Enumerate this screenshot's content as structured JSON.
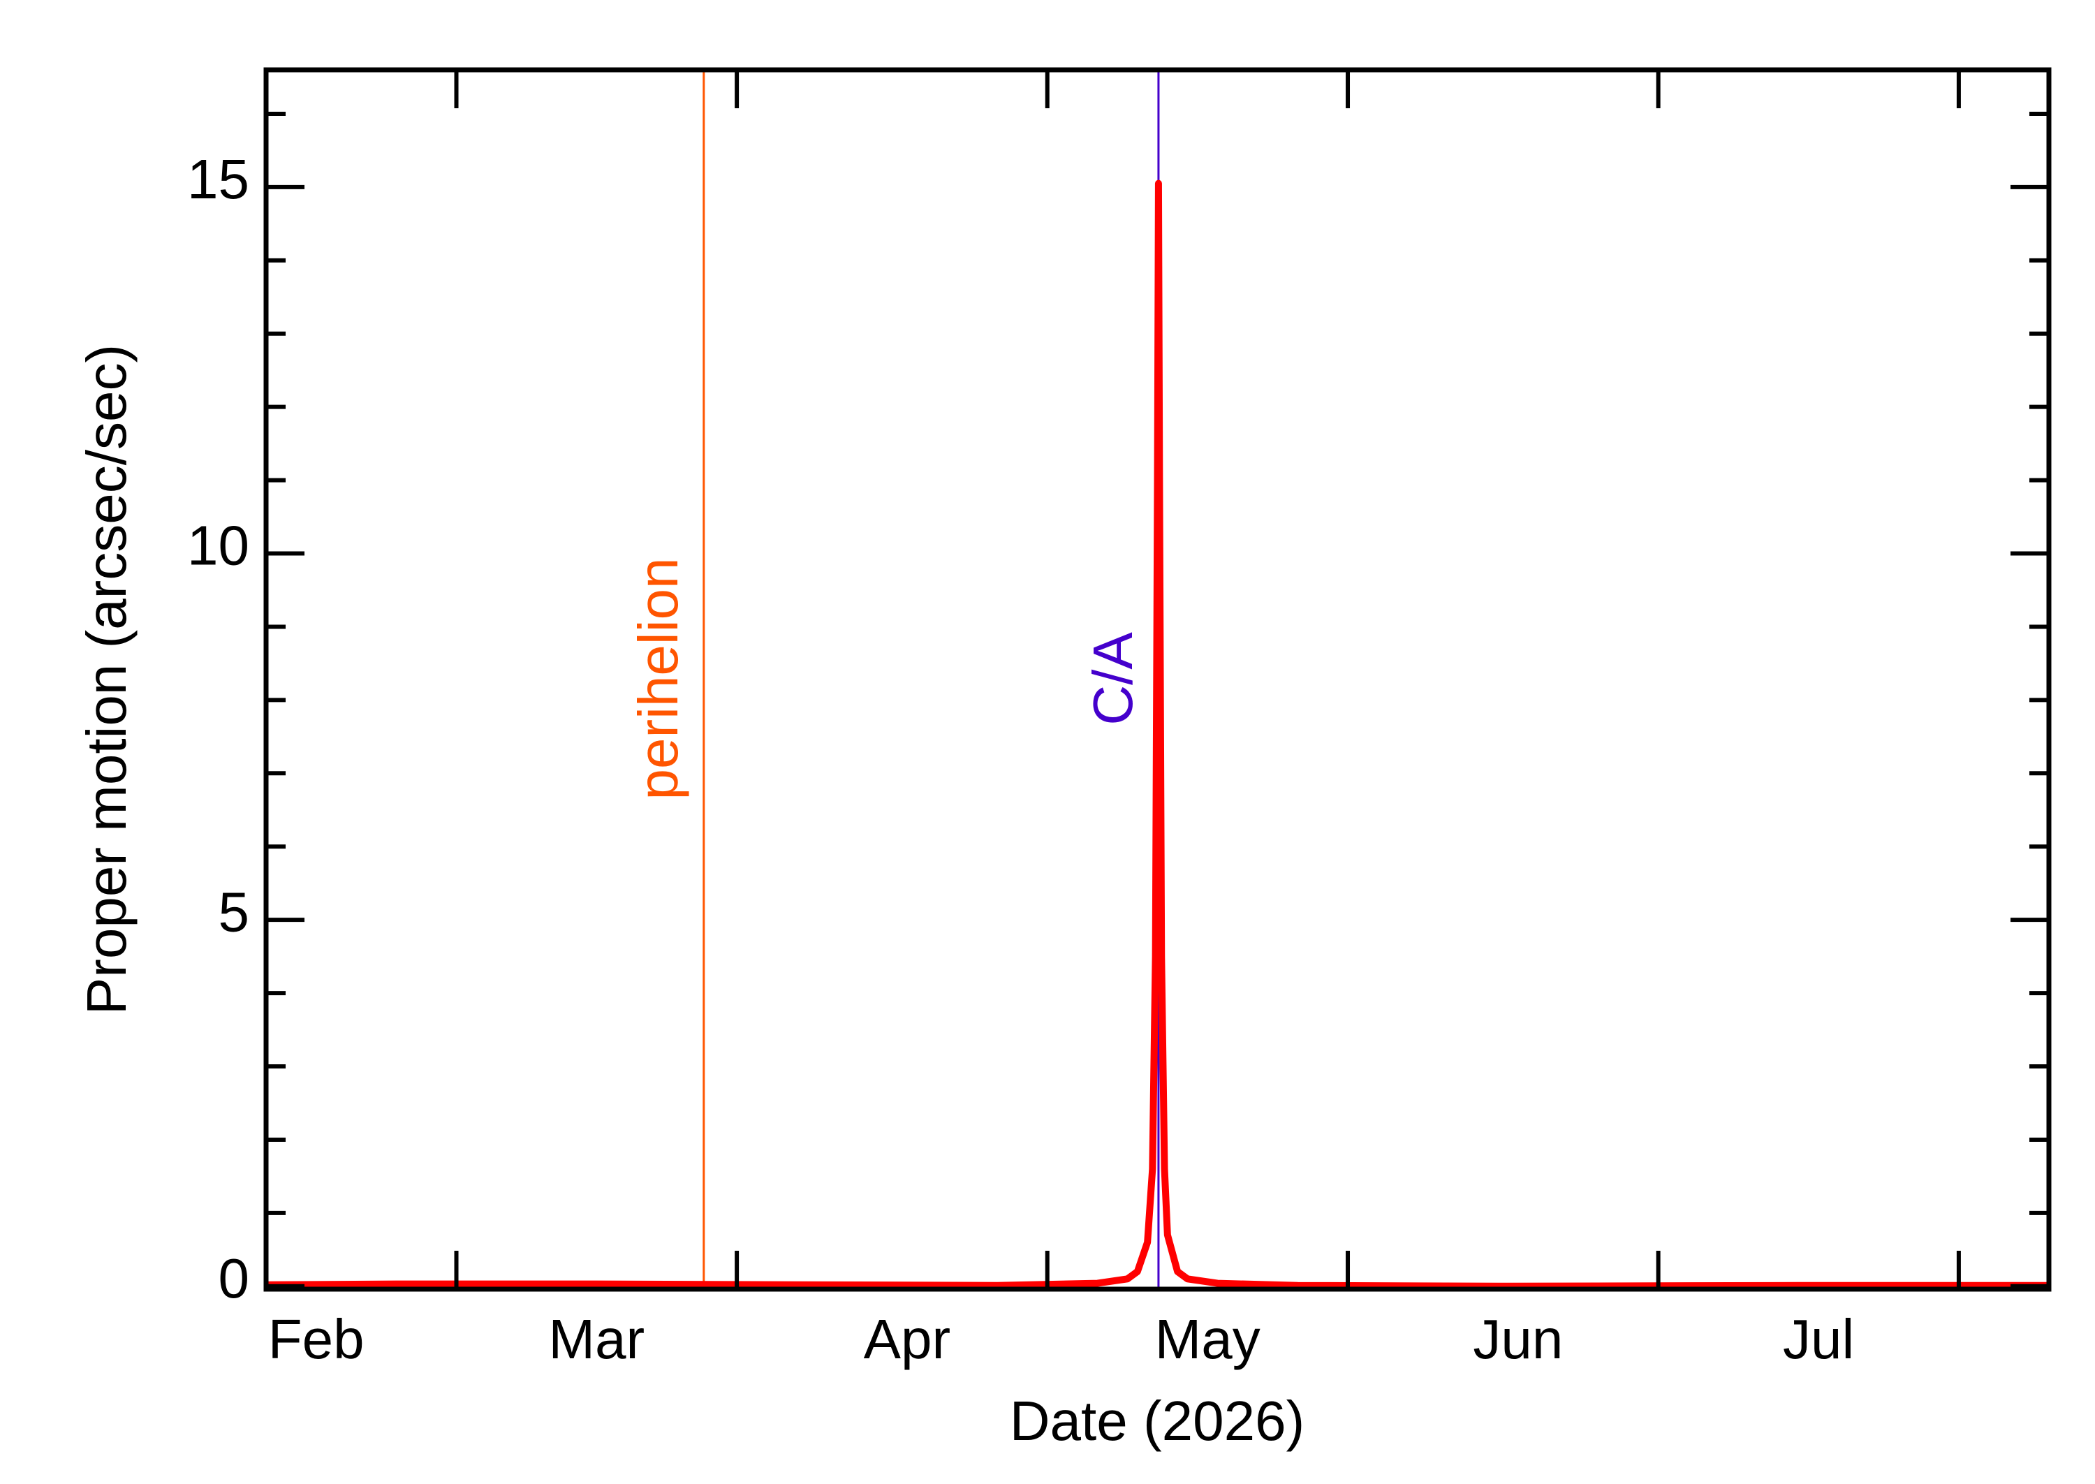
{
  "chart_data": {
    "type": "line",
    "xlabel": "Date (2026)",
    "ylabel": "Proper motion (arcsec/sec)",
    "xlim": [
      27,
      205
    ],
    "xticks": [
      {
        "value": 32,
        "label": "Feb"
      },
      {
        "value": 60,
        "label": "Mar"
      },
      {
        "value": 91,
        "label": "Apr"
      },
      {
        "value": 121,
        "label": "May"
      },
      {
        "value": 152,
        "label": "Jun"
      },
      {
        "value": 182,
        "label": "Jul"
      }
    ],
    "x_tick_marks": [
      46,
      74,
      105,
      135,
      166,
      196
    ],
    "ylim": [
      -0.04,
      16.6
    ],
    "yticks": [
      0,
      5,
      10,
      15
    ],
    "y_minor_ticks": [
      1,
      2,
      3,
      4,
      6,
      7,
      8,
      9,
      11,
      12,
      13,
      14,
      16
    ],
    "annotations": [
      {
        "text": "perihelion",
        "x": 70.7,
        "color": "#ff5500"
      },
      {
        "text": "C/A",
        "x": 116.1,
        "color": "#4400cc"
      }
    ],
    "series": [
      {
        "color": "#ff0000",
        "x": [
          27,
          40,
          60,
          80,
          100,
          110,
          113,
          114,
          115,
          115.5,
          115.8,
          116.0,
          116.1,
          116.2,
          116.4,
          116.7,
          117,
          118,
          119,
          122,
          130,
          150,
          180,
          205
        ],
        "values": [
          0.02,
          0.03,
          0.03,
          0.02,
          0.01,
          0.04,
          0.1,
          0.2,
          0.6,
          1.6,
          4.5,
          11,
          15.05,
          11,
          4.5,
          1.6,
          0.7,
          0.2,
          0.1,
          0.04,
          0.01,
          0.0,
          0.01,
          0.01
        ]
      }
    ]
  }
}
